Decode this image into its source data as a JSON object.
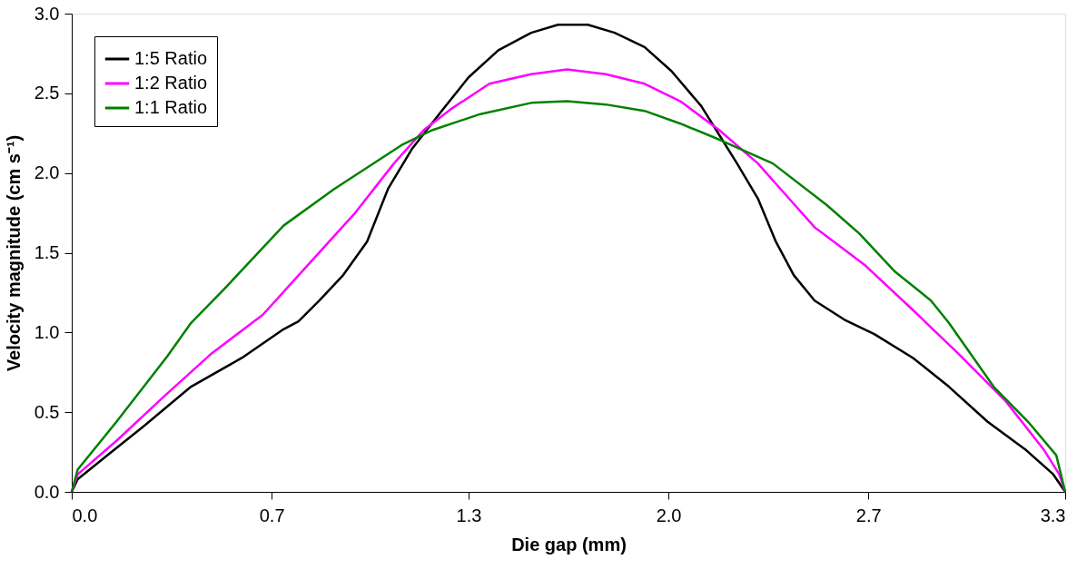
{
  "chart_data": {
    "type": "line",
    "xlabel": "Die gap (mm)",
    "ylabel": "Velocity magnitude (cm s⁻¹)",
    "xlim": [
      0,
      3.33
    ],
    "ylim": [
      0,
      3.0
    ],
    "xticks": [
      {
        "value": 0,
        "label": "0.0"
      },
      {
        "value": 0.67,
        "label": "0.7"
      },
      {
        "value": 1.33,
        "label": "1.3"
      },
      {
        "value": 2.0,
        "label": "2.0"
      },
      {
        "value": 2.67,
        "label": "2.7"
      },
      {
        "value": 3.33,
        "label": "3.3"
      }
    ],
    "yticks": [
      {
        "value": 0,
        "label": "0.0"
      },
      {
        "value": 0.5,
        "label": "0.5"
      },
      {
        "value": 1.0,
        "label": "1.0"
      },
      {
        "value": 1.5,
        "label": "1.5"
      },
      {
        "value": 2.0,
        "label": "2.0"
      },
      {
        "value": 2.5,
        "label": "2.5"
      },
      {
        "value": 3.0,
        "label": "3.0"
      }
    ],
    "grid": false,
    "legend": "top left",
    "marker": "none",
    "line_style": "solid",
    "series": [
      {
        "name": "1:5 Ratio",
        "color": "#000000",
        "x": [
          0,
          0.02,
          0.12,
          0.24,
          0.4,
          0.57,
          0.71,
          0.76,
          0.83,
          0.91,
          0.99,
          1.06,
          1.14,
          1.24,
          1.33,
          1.43,
          1.54,
          1.63,
          1.73,
          1.82,
          1.92,
          2.01,
          2.11,
          2.17,
          2.23,
          2.3,
          2.36,
          2.42,
          2.49,
          2.59,
          2.69,
          2.82,
          2.94,
          3.07,
          3.2,
          3.29,
          3.33
        ],
        "values": [
          0,
          0.08,
          0.23,
          0.41,
          0.66,
          0.84,
          1.02,
          1.07,
          1.2,
          1.36,
          1.57,
          1.9,
          2.15,
          2.39,
          2.6,
          2.77,
          2.88,
          2.93,
          2.93,
          2.88,
          2.79,
          2.64,
          2.42,
          2.24,
          2.06,
          1.84,
          1.57,
          1.36,
          1.2,
          1.08,
          0.99,
          0.84,
          0.66,
          0.44,
          0.26,
          0.11,
          0
        ]
      },
      {
        "name": "1:2 Ratio",
        "color": "#ff00ff",
        "x": [
          0,
          0.02,
          0.15,
          0.31,
          0.47,
          0.64,
          0.79,
          0.95,
          1.08,
          1.18,
          1.27,
          1.4,
          1.54,
          1.66,
          1.79,
          1.92,
          2.04,
          2.17,
          2.3,
          2.39,
          2.49,
          2.66,
          2.82,
          2.97,
          3.13,
          3.26,
          3.31,
          3.33
        ],
        "values": [
          0,
          0.11,
          0.32,
          0.6,
          0.87,
          1.11,
          1.42,
          1.75,
          2.06,
          2.27,
          2.4,
          2.56,
          2.62,
          2.65,
          2.62,
          2.56,
          2.45,
          2.27,
          2.06,
          1.87,
          1.66,
          1.42,
          1.14,
          0.87,
          0.57,
          0.26,
          0.11,
          0
        ]
      },
      {
        "name": "1:1 Ratio",
        "color": "#008000",
        "x": [
          0,
          0.02,
          0.15,
          0.32,
          0.4,
          0.51,
          0.71,
          0.88,
          1.11,
          1.21,
          1.37,
          1.54,
          1.66,
          1.79,
          1.92,
          2.04,
          2.17,
          2.35,
          2.53,
          2.64,
          2.76,
          2.88,
          2.94,
          3.09,
          3.21,
          3.3,
          3.33
        ],
        "values": [
          0,
          0.14,
          0.44,
          0.85,
          1.06,
          1.27,
          1.67,
          1.9,
          2.18,
          2.27,
          2.37,
          2.44,
          2.45,
          2.43,
          2.39,
          2.31,
          2.21,
          2.06,
          1.8,
          1.62,
          1.38,
          1.2,
          1.06,
          0.66,
          0.43,
          0.23,
          0
        ]
      }
    ]
  }
}
